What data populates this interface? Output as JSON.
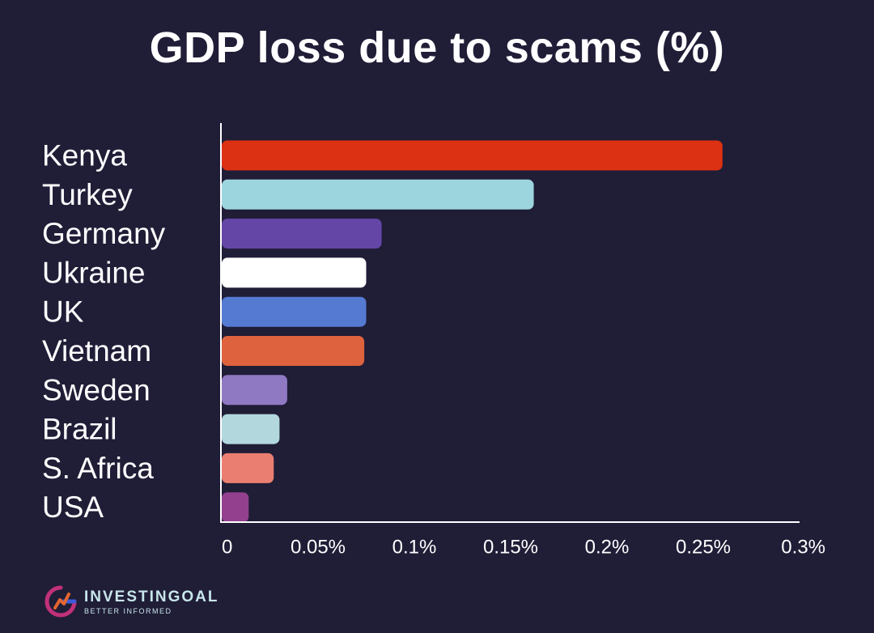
{
  "chart_data": {
    "type": "bar",
    "orientation": "horizontal",
    "title": "GDP loss due to scams (%)",
    "categories": [
      "Kenya",
      "Turkey",
      "Germany",
      "Ukraine",
      "UK",
      "Vietnam",
      "Sweden",
      "Brazil",
      "S. Africa",
      "USA"
    ],
    "values": [
      0.26,
      0.162,
      0.083,
      0.075,
      0.075,
      0.074,
      0.034,
      0.03,
      0.027,
      0.014
    ],
    "bar_colors": [
      "#dc3112",
      "#9dd5df",
      "#6446a7",
      "#ffffff",
      "#557ad2",
      "#dd623d",
      "#9079c3",
      "#b2d8dd",
      "#ea7f71",
      "#93408e"
    ],
    "xlim": [
      0,
      0.3
    ],
    "x_ticks": [
      0,
      0.05,
      0.1,
      0.15,
      0.2,
      0.25,
      0.3
    ],
    "x_tick_labels": [
      "0",
      "0.05%",
      "0.1%",
      "0.15%",
      "0.2%",
      "0.25%",
      "0.3%"
    ],
    "xlabel": "",
    "ylabel": "",
    "grid": false,
    "legend": "none"
  },
  "brand": {
    "name": "INVESTINGOAL",
    "tagline": "BETTER INFORMED",
    "logo_icon": "investingoal-logo-icon",
    "colors": {
      "text": "#c7e6ea",
      "logo_magenta": "#c1317a",
      "logo_blue": "#3d5bd8",
      "logo_orange": "#e4662f"
    }
  },
  "colors": {
    "background": "#201d37",
    "axis": "#ffffff",
    "text": "#ffffff"
  }
}
